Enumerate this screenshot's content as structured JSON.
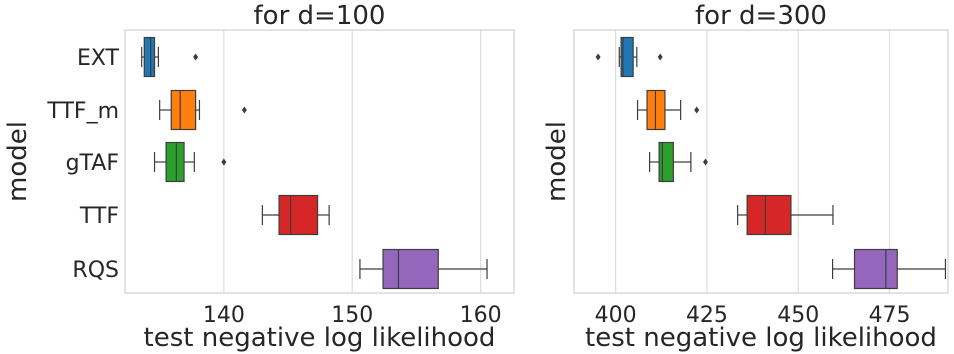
{
  "chart_data": [
    {
      "type": "box",
      "title": "for d=100",
      "xlabel": "test negative log likelihood",
      "ylabel": "model",
      "xlim": [
        132.3,
        162.6
      ],
      "xticks": [
        140,
        150,
        160
      ],
      "grid": "vertical",
      "series": [
        {
          "name": "EXT",
          "color": "#1f77b4",
          "whisker_low": 133.6,
          "q1": 133.8,
          "median": 134.3,
          "q3": 134.6,
          "whisker_high": 134.9,
          "outliers": [
            137.8
          ]
        },
        {
          "name": "TTF_m",
          "color": "#ff7f0e",
          "whisker_low": 135.0,
          "q1": 135.9,
          "median": 136.6,
          "q3": 137.8,
          "whisker_high": 138.1,
          "outliers": [
            141.6
          ]
        },
        {
          "name": "gTAF",
          "color": "#2ca02c",
          "whisker_low": 134.6,
          "q1": 135.5,
          "median": 136.3,
          "q3": 136.9,
          "whisker_high": 137.7,
          "outliers": [
            140.0
          ]
        },
        {
          "name": "TTF",
          "color": "#d62728",
          "whisker_low": 143.0,
          "q1": 144.3,
          "median": 145.2,
          "q3": 147.3,
          "whisker_high": 148.2,
          "outliers": []
        },
        {
          "name": "RQS",
          "color": "#9467bd",
          "whisker_low": 150.6,
          "q1": 152.4,
          "median": 153.6,
          "q3": 156.7,
          "whisker_high": 160.5,
          "outliers": []
        }
      ]
    },
    {
      "type": "box",
      "title": "for d=300",
      "xlabel": "test negative log likelihood",
      "ylabel": "model",
      "xlim": [
        388.6,
        491.0
      ],
      "xticks": [
        400,
        425,
        450,
        475
      ],
      "grid": "vertical",
      "series": [
        {
          "name": "EXT",
          "color": "#1f77b4",
          "whisker_low": 401.0,
          "q1": 401.5,
          "median": 402.0,
          "q3": 404.8,
          "whisker_high": 405.8,
          "outliers": [
            395.2,
            412.2
          ]
        },
        {
          "name": "TTF_m",
          "color": "#ff7f0e",
          "whisker_low": 406.0,
          "q1": 408.6,
          "median": 410.9,
          "q3": 413.5,
          "whisker_high": 417.8,
          "outliers": [
            422.2
          ]
        },
        {
          "name": "gTAF",
          "color": "#2ca02c",
          "whisker_low": 409.3,
          "q1": 411.9,
          "median": 412.8,
          "q3": 415.8,
          "whisker_high": 420.6,
          "outliers": [
            424.6
          ]
        },
        {
          "name": "TTF",
          "color": "#d62728",
          "whisker_low": 433.4,
          "q1": 436.0,
          "median": 441.0,
          "q3": 448.0,
          "whisker_high": 459.5,
          "outliers": []
        },
        {
          "name": "RQS",
          "color": "#9467bd",
          "whisker_low": 459.4,
          "q1": 465.4,
          "median": 474.0,
          "q3": 477.1,
          "whisker_high": 490.3,
          "outliers": []
        }
      ]
    }
  ]
}
